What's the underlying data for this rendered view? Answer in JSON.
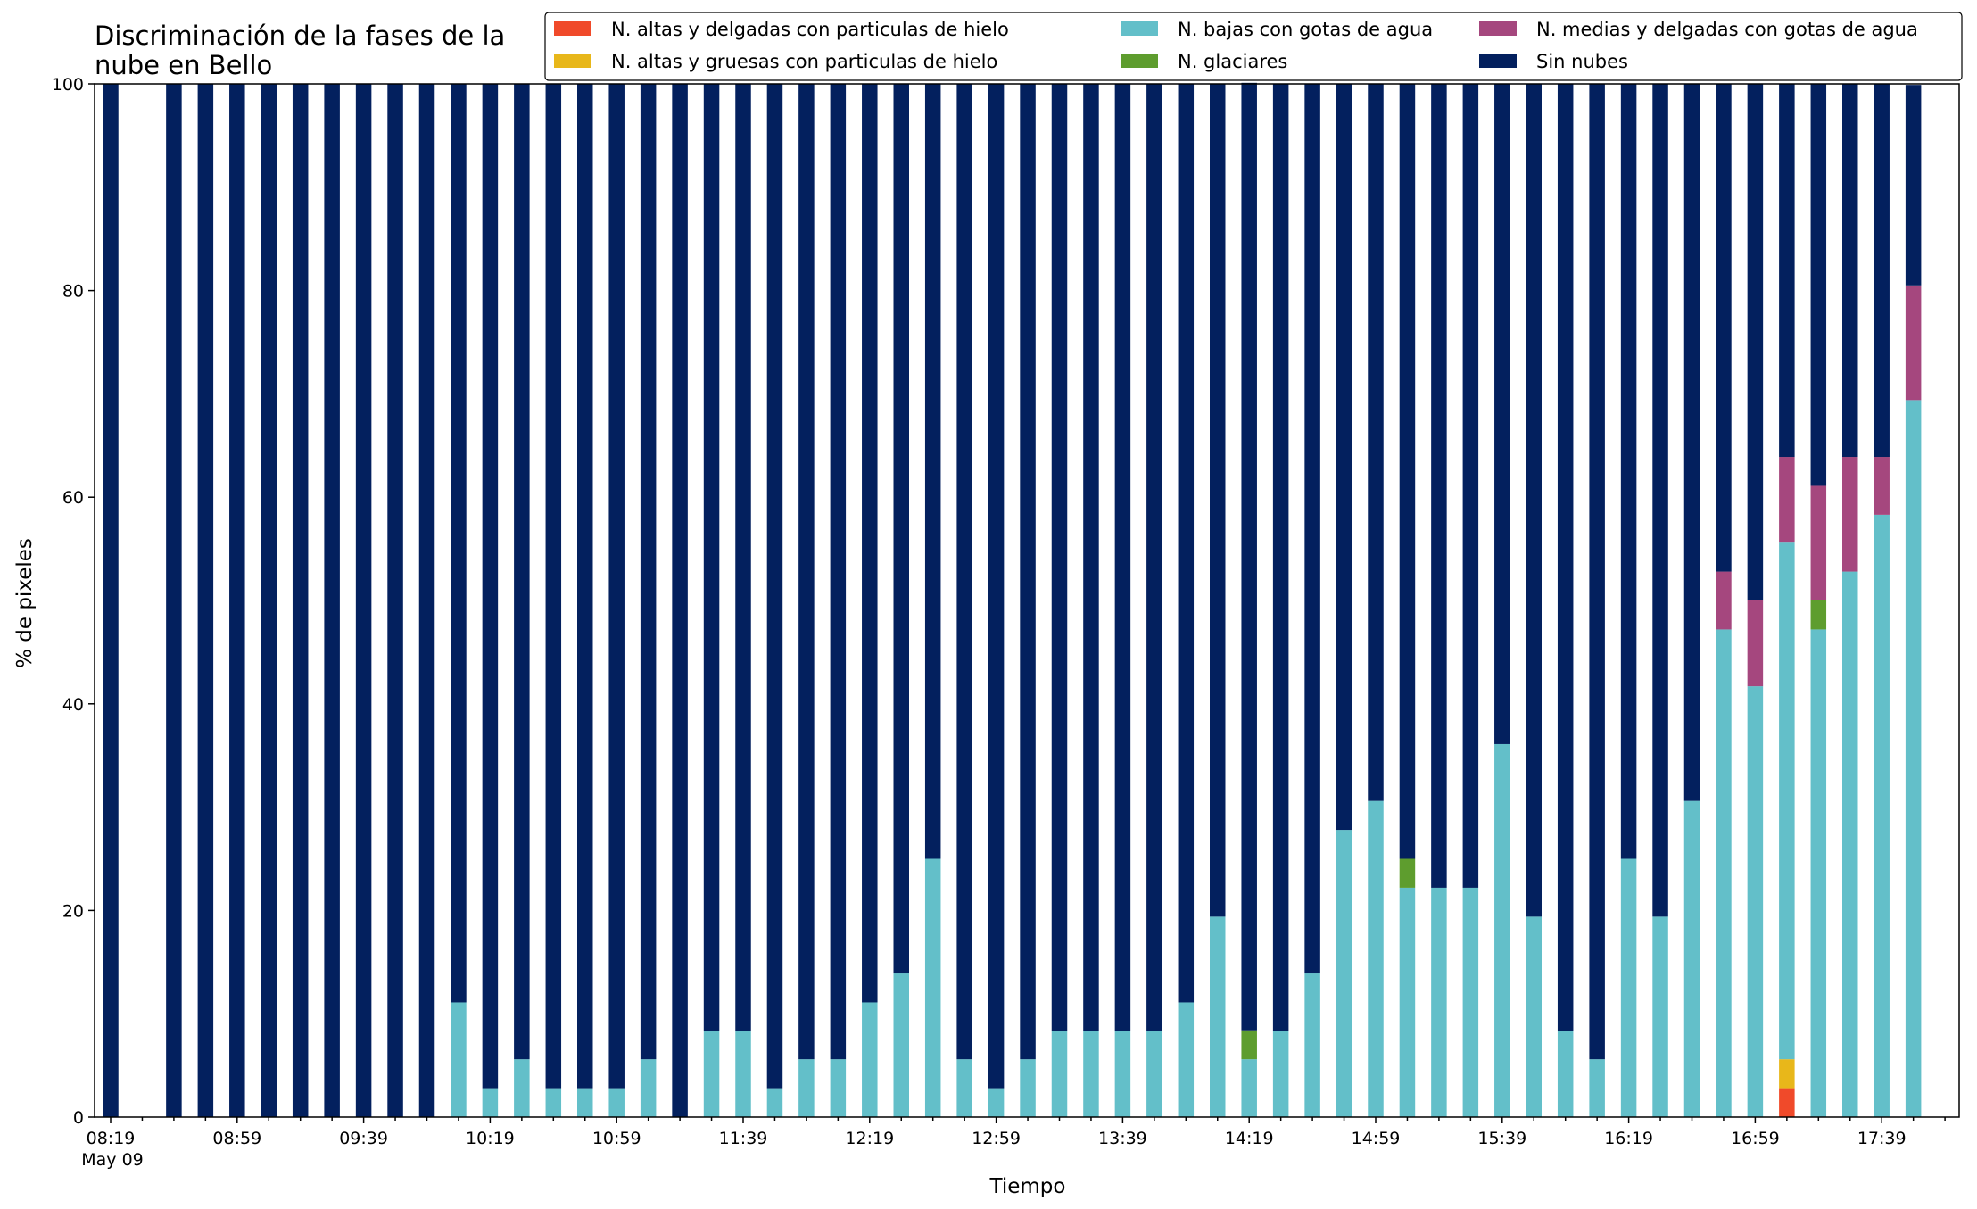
{
  "chart_data": {
    "type": "bar",
    "stacked": true,
    "title": [
      "Discriminación de la fases de la",
      "nube en Bello"
    ],
    "xlabel": "Tiempo",
    "ylabel": "% de pixeles",
    "ylim": [
      0,
      100
    ],
    "yticks": [
      "0",
      "20",
      "40",
      "60",
      "80",
      "100"
    ],
    "grid": false,
    "legend_position": "top-right",
    "categories": [
      "08:19",
      "08:29",
      "08:39",
      "08:49",
      "08:59",
      "09:09",
      "09:19",
      "09:29",
      "09:39",
      "09:49",
      "09:59",
      "10:09",
      "10:19",
      "10:29",
      "10:39",
      "10:49",
      "10:59",
      "11:09",
      "11:19",
      "11:29",
      "11:39",
      "11:49",
      "11:59",
      "12:09",
      "12:19",
      "12:29",
      "12:39",
      "12:49",
      "12:59",
      "13:09",
      "13:19",
      "13:29",
      "13:39",
      "13:49",
      "13:59",
      "14:09",
      "14:19",
      "14:29",
      "14:39",
      "14:49",
      "14:59",
      "15:09",
      "15:19",
      "15:29",
      "15:39",
      "15:49",
      "15:59",
      "16:09",
      "16:19",
      "16:29",
      "16:39",
      "16:49",
      "16:59",
      "17:09",
      "17:19",
      "17:29",
      "17:39",
      "17:49"
    ],
    "x_tick_labels": [
      {
        "index": 0,
        "label": "08:19",
        "sublabel": "May 09"
      },
      {
        "index": 4,
        "label": "08:59"
      },
      {
        "index": 8,
        "label": "09:39"
      },
      {
        "index": 12,
        "label": "10:19"
      },
      {
        "index": 16,
        "label": "10:59"
      },
      {
        "index": 20,
        "label": "11:39"
      },
      {
        "index": 24,
        "label": "12:19"
      },
      {
        "index": 28,
        "label": "12:59"
      },
      {
        "index": 32,
        "label": "13:39"
      },
      {
        "index": 36,
        "label": "14:19"
      },
      {
        "index": 40,
        "label": "14:59"
      },
      {
        "index": 44,
        "label": "15:39"
      },
      {
        "index": 48,
        "label": "16:19"
      },
      {
        "index": 52,
        "label": "16:59"
      },
      {
        "index": 56,
        "label": "17:39"
      }
    ],
    "series": [
      {
        "name": "N. altas y delgadas con particulas de hielo",
        "color": "#f04a2a",
        "values": [
          0,
          null,
          0,
          0,
          0,
          0,
          0,
          0,
          0,
          0,
          0,
          0,
          0,
          0,
          0,
          0,
          0,
          0,
          0,
          0,
          0,
          0,
          0,
          0,
          0,
          0,
          0,
          0,
          0,
          0,
          0,
          0,
          0,
          0,
          0,
          0,
          0,
          0,
          0,
          0,
          0,
          0,
          0,
          0,
          0,
          0,
          0,
          0,
          0,
          0,
          0,
          0,
          0,
          2.8,
          0,
          0,
          0,
          0
        ]
      },
      {
        "name": "N. altas y gruesas con particulas de hielo",
        "color": "#e8b71a",
        "values": [
          0,
          null,
          0,
          0,
          0,
          0,
          0,
          0,
          0,
          0,
          0,
          0,
          0,
          0,
          0,
          0,
          0,
          0,
          0,
          0,
          0,
          0,
          0,
          0,
          0,
          0,
          0,
          0,
          0,
          0,
          0,
          0,
          0,
          0,
          0,
          0,
          0,
          0,
          0,
          0,
          0,
          0,
          0,
          0,
          0,
          0,
          0,
          0,
          0,
          0,
          0,
          0,
          0,
          2.8,
          0,
          0,
          0,
          0
        ]
      },
      {
        "name": "N. bajas con gotas de agua",
        "color": "#63bfc9",
        "values": [
          0,
          null,
          0,
          0,
          0,
          0,
          0,
          0,
          0,
          0,
          0,
          11.1,
          2.8,
          5.6,
          2.8,
          2.8,
          2.8,
          5.6,
          0,
          8.3,
          8.3,
          2.8,
          5.6,
          5.6,
          11.1,
          13.9,
          25,
          5.6,
          2.8,
          5.6,
          8.3,
          8.3,
          8.3,
          8.3,
          11.1,
          19.4,
          5.6,
          8.3,
          13.9,
          27.8,
          30.6,
          22.2,
          22.2,
          22.2,
          36.1,
          19.4,
          8.3,
          5.6,
          25,
          19.4,
          30.6,
          47.2,
          41.7,
          50,
          47.2,
          52.8,
          58.3,
          69.4
        ]
      },
      {
        "name": "N. glaciares",
        "color": "#5e9d2e",
        "values": [
          0,
          null,
          0,
          0,
          0,
          0,
          0,
          0,
          0,
          0,
          0,
          0,
          0,
          0,
          0,
          0,
          0,
          0,
          0,
          0,
          0,
          0,
          0,
          0,
          0,
          0,
          0,
          0,
          0,
          0,
          0,
          0,
          0,
          0,
          0,
          0,
          2.8,
          0,
          0,
          0,
          0,
          2.8,
          0,
          0,
          0,
          0,
          0,
          0,
          0,
          0,
          0,
          0,
          0,
          0,
          2.8,
          0,
          0,
          0
        ]
      },
      {
        "name": "N. medias y delgadas con gotas de agua",
        "color": "#a5477e",
        "values": [
          0,
          null,
          0,
          0,
          0,
          0,
          0,
          0,
          0,
          0,
          0,
          0,
          0,
          0,
          0,
          0,
          0,
          0,
          0,
          0,
          0,
          0,
          0,
          0,
          0,
          0,
          0,
          0,
          0,
          0,
          0,
          0,
          0,
          0,
          0,
          0,
          0,
          0,
          0,
          0,
          0,
          0,
          0,
          0,
          0,
          0,
          0,
          0,
          0,
          0,
          0,
          5.6,
          8.3,
          8.3,
          11.1,
          11.1,
          5.6,
          11.1
        ]
      },
      {
        "name": "Sin nubes",
        "color": "#03205e",
        "values": [
          100,
          null,
          100,
          100,
          100,
          100,
          100,
          100,
          100,
          100,
          100,
          88.9,
          97.2,
          94.4,
          97.2,
          97.2,
          97.2,
          94.4,
          100,
          91.7,
          91.7,
          97.2,
          94.4,
          94.4,
          88.9,
          86.1,
          75,
          94.4,
          97.2,
          94.4,
          91.7,
          91.7,
          91.7,
          91.7,
          88.9,
          80.6,
          91.7,
          91.7,
          86.1,
          72.2,
          69.4,
          75,
          77.8,
          77.8,
          63.9,
          80.6,
          91.7,
          94.4,
          75,
          80.6,
          69.4,
          47.2,
          50,
          36.1,
          38.9,
          36.1,
          36.1,
          19.4
        ]
      }
    ]
  }
}
